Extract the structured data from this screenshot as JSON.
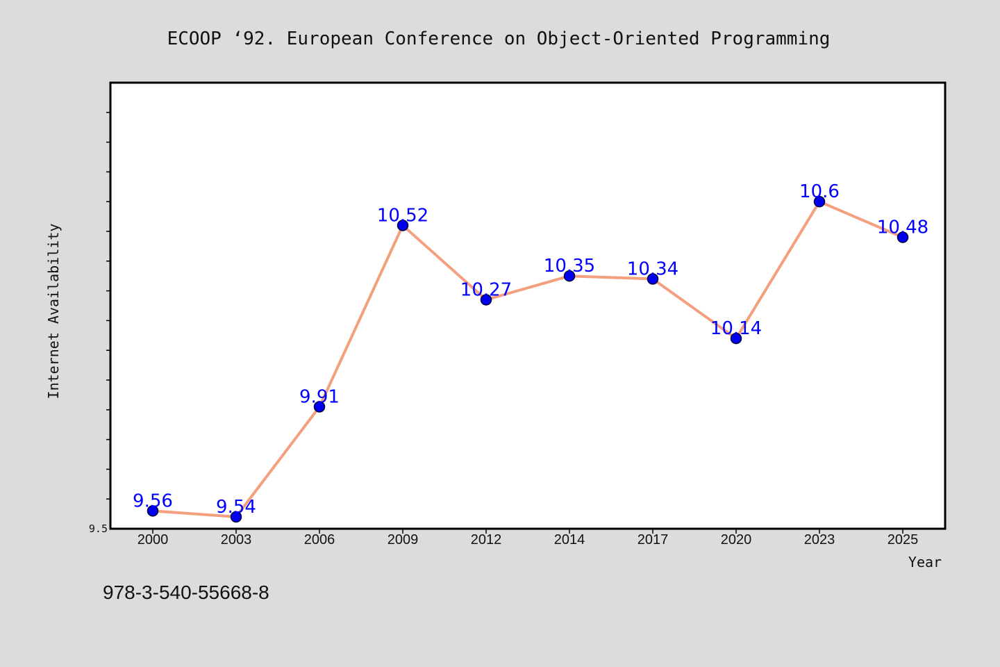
{
  "chart_data": {
    "type": "line",
    "title": "ECOOP  ‘92. European Conference on Object-Oriented Programming",
    "xlabel": "Year",
    "ylabel": "Internet Availability",
    "categories": [
      "2000",
      "2003",
      "2006",
      "2009",
      "2012",
      "2014",
      "2017",
      "2020",
      "2023",
      "2025"
    ],
    "values": [
      9.56,
      9.54,
      9.91,
      10.52,
      10.27,
      10.35,
      10.34,
      10.14,
      10.6,
      10.48
    ],
    "data_labels": [
      "9.56",
      "9.54",
      "9.91",
      "10.52",
      "10.27",
      "10.35",
      "10.34",
      "10.14",
      "10.6",
      "10.48"
    ],
    "ytick_labels": [
      "9.5"
    ],
    "ylim": [
      9.5,
      11.0
    ],
    "grid": false,
    "colors": {
      "line": "#f4a07f",
      "marker": "#0000ee",
      "marker_edge": "#00003a",
      "data_label": "#0000ff",
      "plot_background": "#ffffff",
      "page_background": "#dcdcdc"
    }
  },
  "footer_text": "978-3-540-55668-8"
}
